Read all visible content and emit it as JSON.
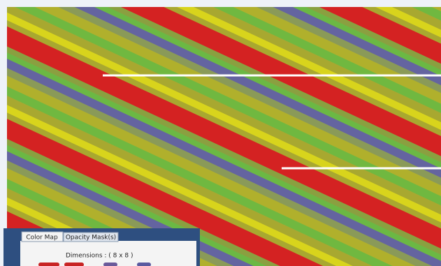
{
  "tabs": [
    "Color Map",
    "Opacity Mask(s)"
  ],
  "dimensions_label": "Dimensions : ( 8 x 8 )"
}
